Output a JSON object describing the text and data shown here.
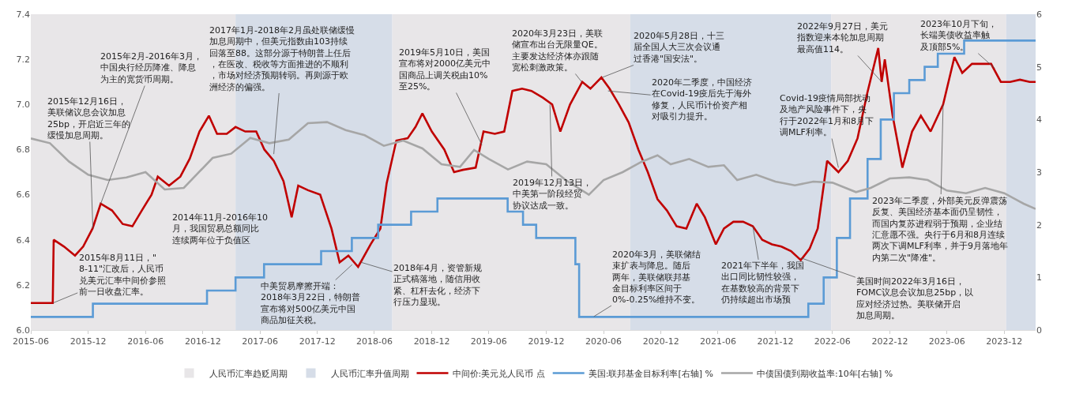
{
  "chart_data": {
    "type": "line",
    "xlim": [
      "2015-06-01",
      "2024-03-10"
    ],
    "xticks": [
      "2015-06",
      "2015-12",
      "2016-06",
      "2016-12",
      "2017-06",
      "2017-12",
      "2018-06",
      "2018-12",
      "2019-06",
      "2019-12",
      "2020-06",
      "2020-12",
      "2021-06",
      "2021-12",
      "2022-06",
      "2022-12",
      "2023-06",
      "2023-12"
    ],
    "ylim": [
      6.0,
      7.4
    ],
    "yticks": [
      {
        "value": 6.0,
        "label": "6.0"
      },
      6.2,
      6.4,
      6.6,
      6.8,
      {
        "value": 7.0,
        "label": "7.0"
      },
      7.2,
      7.4
    ],
    "y2lim": [
      0,
      6
    ],
    "y2ticks": [
      0,
      1,
      2,
      3,
      4,
      5,
      6
    ],
    "grid": false,
    "legend": "bottom",
    "bands": [
      {
        "axis": "x",
        "from": "2015-06-01",
        "to": "2017-03-15",
        "label": "人民币汇率趋贬周期",
        "color": "#e8e6e8"
      },
      {
        "axis": "x",
        "from": "2017-03-15",
        "to": "2018-07-28",
        "label": "人民币汇率升值周期",
        "color": "#d6dde8"
      },
      {
        "axis": "x",
        "from": "2018-07-28",
        "to": "2020-08-25",
        "color": "#e8e6e8"
      },
      {
        "axis": "x",
        "from": "2020-08-25",
        "to": "2022-05-28",
        "color": "#d6dde8"
      },
      {
        "axis": "x",
        "from": "2022-05-28",
        "to": "2023-12-07",
        "color": "#e8e6e8"
      },
      {
        "axis": "x",
        "from": "2023-12-07",
        "to": "2024-03-10",
        "color": "#d6dde8"
      }
    ],
    "series": [
      {
        "name": "中间价:美元兑人民币 点",
        "color": "#c00000",
        "x": [
          "2015-06-01",
          "2015-08-10",
          "2015-08-13",
          "2015-09-15",
          "2015-10-20",
          "2015-11-15",
          "2015-12-15",
          "2016-01-10",
          "2016-02-15",
          "2016-03-20",
          "2016-04-20",
          "2016-05-20",
          "2016-06-20",
          "2016-07-10",
          "2016-08-15",
          "2016-09-20",
          "2016-10-20",
          "2016-11-20",
          "2016-12-20",
          "2017-01-15",
          "2017-02-15",
          "2017-03-15",
          "2017-04-15",
          "2017-05-20",
          "2017-06-15",
          "2017-07-15",
          "2017-08-15",
          "2017-09-10",
          "2017-10-01",
          "2017-11-01",
          "2017-12-10",
          "2018-01-15",
          "2018-02-10",
          "2018-03-10",
          "2018-04-10",
          "2018-05-20",
          "2018-06-20",
          "2018-07-10",
          "2018-08-10",
          "2018-09-15",
          "2018-10-10",
          "2018-11-01",
          "2018-12-01",
          "2019-01-10",
          "2019-02-10",
          "2019-03-10",
          "2019-04-20",
          "2019-05-15",
          "2019-06-20",
          "2019-07-20",
          "2019-08-15",
          "2019-09-15",
          "2019-10-15",
          "2019-11-20",
          "2019-12-20",
          "2020-01-15",
          "2020-02-15",
          "2020-03-25",
          "2020-04-20",
          "2020-05-25",
          "2020-06-20",
          "2020-07-20",
          "2020-08-20",
          "2020-09-20",
          "2020-10-20",
          "2020-11-20",
          "2020-12-20",
          "2021-01-20",
          "2021-02-20",
          "2021-03-25",
          "2021-04-20",
          "2021-05-25",
          "2021-06-20",
          "2021-07-20",
          "2021-08-20",
          "2021-09-20",
          "2021-10-20",
          "2021-11-20",
          "2021-12-20",
          "2022-01-20",
          "2022-02-20",
          "2022-03-20",
          "2022-04-15",
          "2022-05-15",
          "2022-06-20",
          "2022-07-20",
          "2022-08-20",
          "2022-09-20",
          "2022-10-25",
          "2022-11-05",
          "2022-11-15",
          "2022-12-10",
          "2023-01-10",
          "2023-02-10",
          "2023-03-10",
          "2023-04-10",
          "2023-05-20",
          "2023-06-25",
          "2023-07-20",
          "2023-08-20",
          "2023-09-20",
          "2023-10-20",
          "2023-11-20",
          "2023-12-20",
          "2024-01-20",
          "2024-02-20",
          "2024-03-10"
        ],
        "values": [
          6.12,
          6.12,
          6.4,
          6.37,
          6.33,
          6.37,
          6.45,
          6.56,
          6.53,
          6.47,
          6.46,
          6.53,
          6.6,
          6.68,
          6.64,
          6.68,
          6.76,
          6.88,
          6.95,
          6.87,
          6.87,
          6.9,
          6.88,
          6.88,
          6.8,
          6.75,
          6.66,
          6.5,
          6.64,
          6.62,
          6.6,
          6.45,
          6.3,
          6.33,
          6.28,
          6.38,
          6.45,
          6.65,
          6.84,
          6.85,
          6.9,
          6.96,
          6.88,
          6.8,
          6.7,
          6.71,
          6.72,
          6.88,
          6.87,
          6.88,
          7.06,
          7.07,
          7.06,
          7.03,
          7.0,
          6.88,
          7.0,
          7.1,
          7.07,
          7.12,
          7.07,
          7.0,
          6.92,
          6.8,
          6.7,
          6.58,
          6.53,
          6.46,
          6.45,
          6.56,
          6.5,
          6.38,
          6.45,
          6.48,
          6.48,
          6.46,
          6.4,
          6.38,
          6.37,
          6.35,
          6.31,
          6.36,
          6.45,
          6.75,
          6.7,
          6.75,
          6.85,
          7.05,
          7.25,
          7.1,
          7.2,
          6.95,
          6.72,
          6.88,
          6.95,
          6.88,
          7.0,
          7.21,
          7.14,
          7.18,
          7.18,
          7.18,
          7.1,
          7.1,
          7.11,
          7.1,
          7.1
        ]
      },
      {
        "name": "美国:联邦基金目标利率[右轴] %",
        "color": "#5b9bd5",
        "type": "step",
        "axis": "y2",
        "x": [
          "2015-06-01",
          "2015-12-16",
          "2016-12-14",
          "2017-03-15",
          "2017-06-14",
          "2017-12-13",
          "2018-03-21",
          "2018-06-13",
          "2018-09-26",
          "2018-12-19",
          "2019-07-31",
          "2019-09-18",
          "2019-10-30",
          "2020-03-03",
          "2020-03-15",
          "2022-03-16",
          "2022-05-04",
          "2022-06-15",
          "2022-07-27",
          "2022-09-21",
          "2022-11-02",
          "2022-12-14",
          "2023-02-01",
          "2023-03-22",
          "2023-05-03",
          "2023-07-26",
          "2024-03-10"
        ],
        "values": [
          0.25,
          0.5,
          0.75,
          1.0,
          1.25,
          1.5,
          1.75,
          2.0,
          2.25,
          2.5,
          2.25,
          2.0,
          1.75,
          1.25,
          0.25,
          0.5,
          1.0,
          1.75,
          2.5,
          3.25,
          4.0,
          4.5,
          4.75,
          5.0,
          5.25,
          5.5,
          5.5
        ]
      },
      {
        "name": "中债国债到期收益率:10年[右轴] %",
        "color": "#a6a6a6",
        "axis": "y2",
        "x": [
          "2015-06-01",
          "2015-08-01",
          "2015-10-01",
          "2015-12-01",
          "2016-02-01",
          "2016-04-01",
          "2016-06-01",
          "2016-08-01",
          "2016-10-01",
          "2017-01-01",
          "2017-03-01",
          "2017-05-01",
          "2017-07-01",
          "2017-09-01",
          "2017-11-01",
          "2018-01-01",
          "2018-03-01",
          "2018-05-01",
          "2018-07-01",
          "2018-09-01",
          "2018-11-01",
          "2019-01-01",
          "2019-03-01",
          "2019-04-15",
          "2019-06-01",
          "2019-08-01",
          "2019-10-01",
          "2019-12-01",
          "2020-02-01",
          "2020-04-15",
          "2020-06-01",
          "2020-08-01",
          "2020-10-01",
          "2020-11-20",
          "2021-01-01",
          "2021-03-01",
          "2021-05-01",
          "2021-06-20",
          "2021-08-01",
          "2021-10-01",
          "2021-12-01",
          "2022-02-01",
          "2022-04-01",
          "2022-06-01",
          "2022-08-15",
          "2022-10-01",
          "2022-12-01",
          "2023-02-01",
          "2023-04-01",
          "2023-06-01",
          "2023-08-01",
          "2023-10-01",
          "2023-12-01",
          "2024-02-01",
          "2024-03-10"
        ],
        "values": [
          3.64,
          3.55,
          3.2,
          2.95,
          2.85,
          2.9,
          3.0,
          2.67,
          2.7,
          3.27,
          3.35,
          3.65,
          3.55,
          3.62,
          3.93,
          3.95,
          3.8,
          3.7,
          3.5,
          3.6,
          3.45,
          3.15,
          3.1,
          3.42,
          3.25,
          3.05,
          3.2,
          3.15,
          2.85,
          2.57,
          2.85,
          3.0,
          3.2,
          3.32,
          3.15,
          3.25,
          3.1,
          3.13,
          2.85,
          2.95,
          2.82,
          2.75,
          2.82,
          2.8,
          2.62,
          2.7,
          2.88,
          2.9,
          2.85,
          2.65,
          2.6,
          2.7,
          2.6,
          2.4,
          2.3
        ]
      }
    ],
    "annotations": [
      {
        "text": "2015年12月16日，美联储议息会议加息25bp，开启近三年的缓慢加息周期。",
        "x": "2015-12-16",
        "y": 6.45
      },
      {
        "text": "2015年2月-2016年3月，中国央行经历降准、降息为主的宽货币周期。",
        "x": "2016-01-10",
        "y": 6.56
      },
      {
        "text": "2017年1月-2018年2月虽处联储缓慢加息周期中，但美元指数由103持续回落至88。这部分源于特朗普上任后，在医改、税收等方面推进的不顺利，市场对经济预期转弱。再则源于欧洲经济的偏强。",
        "x": "2017-07-15",
        "y": 6.78
      },
      "2014年11月-2016年10月，我国贸易总额同比连续两年位于负值区",
      {
        "text": "2015年8月11日，\"8-11\"汇改后，人民币兑美元汇率中间价参照前一日收盘汇率。",
        "x": "2015-08-11",
        "y": 6.12
      },
      {
        "text": "中美贸易摩擦开端：2018年3月22日，特朗普宣布将对500亿美元中国商品加征关税。",
        "x": "2018-03-22",
        "y": 6.29
      },
      {
        "text": "2018年4月，资管新规正式稿落地，随信用收紧、杠杆去化，经济下行压力显现。",
        "x": "2018-04-20",
        "y": 6.3
      },
      {
        "text": "2019年5月10日，美国宣布将对2000亿美元中国商品上调关税由10%至25%。",
        "x": "2019-05-10",
        "y": 6.82
      },
      {
        "text": "2020年3月23日，美联储宣布出台无限量QE。主要发达经济体亦跟随宽松刺激政策。",
        "x": "2020-03-23",
        "y": 7.1
      },
      {
        "text": "2020年5月28日，十三届全国人大三次会议通过香港\"国安法\"。",
        "x": "2020-05-28",
        "y": 7.12
      },
      {
        "text": "2019年12月13日，中美第一阶段经贸协议达成一致。",
        "x": "2019-12-13",
        "y": 7.0
      },
      {
        "text": "2020年二季度，中国经济在Covid-19疫后先于海外修复，人民币计价资产相对吸引力提升。",
        "x": "2020-06-15",
        "y": 7.06
      },
      {
        "text": "Covid-19疫情局部扰动及地产风险事件下，央行于2022年1月和8月下调MLF利率。",
        "x": "2022-06-20",
        "y": 6.72
      },
      {
        "text": "2022年9月27日，美元指数迎来本轮加息周期最高值114。",
        "x": "2022-11-05",
        "y": 7.1
      },
      {
        "text": "2023年10月下旬，长端美债收益率触及顶部5%。",
        "x": "2023-11-01",
        "y": 7.16
      },
      {
        "text": "2023年二季度，外部美元反弹震荡反复、美国经济基本面仍呈韧性，而国内复苏进程弱于预期，企业结汇意愿不强。央行于6月和8月连续两次下调MLF利率，并于9月落地年内第二次\"降准\"。",
        "x": "2023-05-20",
        "y": 7.0
      },
      {
        "text": "2020年3月，美联储结束扩表与降息。随后两年，美联储联邦基金目标利率区间于0%-0.25%维持不变。",
        "x": "2020-05-01",
        "y": 6.06
      },
      {
        "text": "2021年下半年，我国出口同比韧性较强，在基数较高的背景下仍持续超出市场预",
        "x": "2021-09-20",
        "y": 6.46
      },
      {
        "text": "美国时间2022年3月16日，FOMC议息会议加息25bp，以应对经济过热。美联储开启加息周期。",
        "x": "2022-02-20",
        "y": 6.32
      }
    ]
  }
}
